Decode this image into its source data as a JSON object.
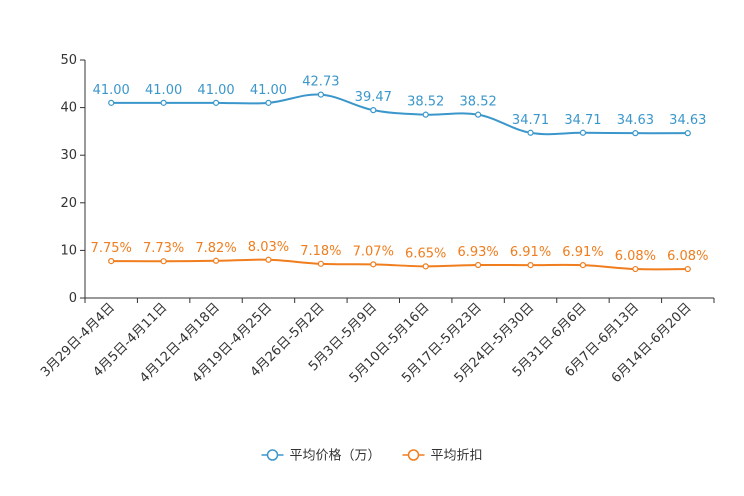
{
  "chart_data": {
    "type": "line",
    "categories": [
      "3月29日-4月4日",
      "4月5日-4月11日",
      "4月12日-4月18日",
      "4月19日-4月25日",
      "4月26日-5月2日",
      "5月3日-5月9日",
      "5月10日-5月16日",
      "5月17日-5月23日",
      "5月24日-5月30日",
      "5月31日-6月6日",
      "6月7日-6月13日",
      "6月14日-6月20日"
    ],
    "series": [
      {
        "name": "平均价格（万）",
        "color": "#3B97CB",
        "values": [
          41.0,
          41.0,
          41.0,
          41.0,
          42.73,
          39.47,
          38.52,
          38.52,
          34.71,
          34.71,
          34.63,
          34.63
        ],
        "labels": [
          "41.00",
          "41.00",
          "41.00",
          "41.00",
          "42.73",
          "39.47",
          "38.52",
          "38.52",
          "34.71",
          "34.71",
          "34.63",
          "34.63"
        ]
      },
      {
        "name": "平均折扣",
        "color": "#F07D1E",
        "values": [
          7.75,
          7.73,
          7.82,
          8.03,
          7.18,
          7.07,
          6.65,
          6.93,
          6.91,
          6.91,
          6.08,
          6.08
        ],
        "labels": [
          "7.75%",
          "7.73%",
          "7.82%",
          "8.03%",
          "7.18%",
          "7.07%",
          "6.65%",
          "6.93%",
          "6.91%",
          "6.91%",
          "6.08%",
          "6.08%"
        ]
      }
    ],
    "ylim": [
      0,
      50
    ],
    "yticks": [
      0,
      10,
      20,
      30,
      40,
      50
    ],
    "ytick_labels": [
      "0",
      "10",
      "20",
      "30",
      "40",
      "50"
    ],
    "title": "",
    "xlabel": "",
    "ylabel": "",
    "grid": false,
    "legend_position": "bottom-center"
  }
}
